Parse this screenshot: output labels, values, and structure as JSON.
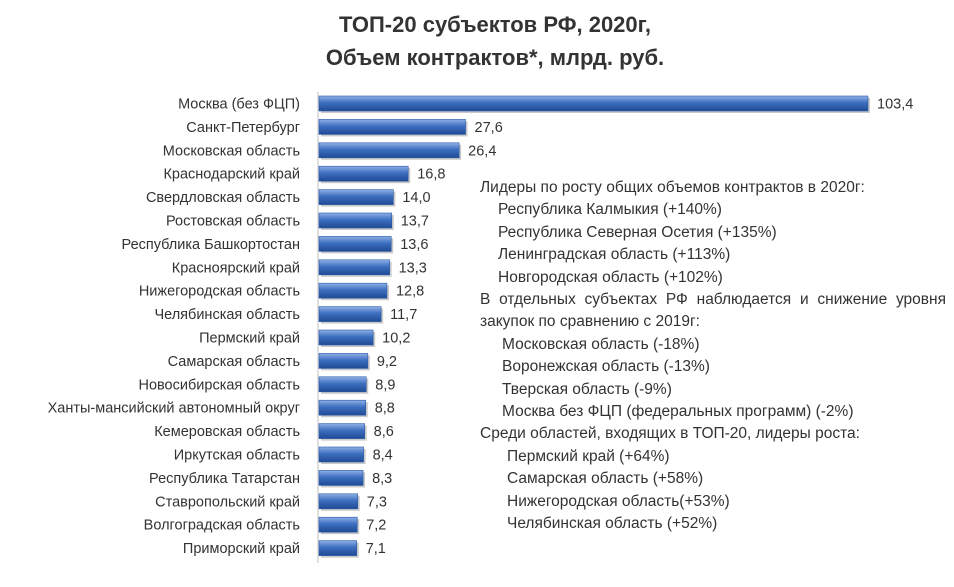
{
  "title_line1": "ТОП-20 субъектов РФ, 2020г,",
  "title_line2": "Объем контрактов*, млрд. руб.",
  "chart_data": {
    "type": "bar",
    "orientation": "horizontal",
    "categories": [
      "Москва (без ФЦП)",
      "Санкт-Петербург",
      "Московская область",
      "Краснодарский край",
      "Свердловская область",
      "Ростовская область",
      "Республика Башкортостан",
      "Красноярский край",
      "Нижегородская область",
      "Челябинская область",
      "Пермский край",
      "Самарская область",
      "Новосибирская область",
      "Ханты-мансийский автономный округ",
      "Кемеровская область",
      "Иркутская область",
      "Республика Татарстан",
      "Ставропольский край",
      "Волгоградская область",
      "Приморский край"
    ],
    "values": [
      103.4,
      27.6,
      26.4,
      16.8,
      14.0,
      13.7,
      13.6,
      13.3,
      12.8,
      11.7,
      10.2,
      9.2,
      8.9,
      8.8,
      8.6,
      8.4,
      8.3,
      7.3,
      7.2,
      7.1
    ],
    "value_labels": [
      "103,4",
      "27,6",
      "26,4",
      "16,8",
      "14,0",
      "13,7",
      "13,6",
      "13,3",
      "12,8",
      "11,7",
      "10,2",
      "9,2",
      "8,9",
      "8,8",
      "8,6",
      "8,4",
      "8,3",
      "7,3",
      "7,2",
      "7,1"
    ],
    "xlim": [
      0,
      103.4
    ],
    "grid": false,
    "bar_color": "#3d6fc0"
  },
  "notes": {
    "growth_leaders": {
      "heading": "Лидеры по росту общих объемов контрактов в 2020г:",
      "items": [
        "Республика Калмыкия (+140%)",
        "Республика Северная Осетия (+135%)",
        "Ленинградская область (+113%)",
        "Новгородская область (+102%)"
      ]
    },
    "decline": {
      "heading": "В отдельных субъектах РФ наблюдается и снижение уровня закупок по сравнению с 2019г:",
      "items": [
        "Московская область (-18%)",
        "Воронежская область (-13%)",
        "Тверская область (-9%)",
        "Москва без ФЦП (федеральных программ) (-2%)"
      ]
    },
    "top20_leaders": {
      "heading": "Среди областей, входящих в ТОП-20, лидеры роста:",
      "items": [
        "Пермский край (+64%)",
        "Самарская область (+58%)",
        "Нижегородская область(+53%)",
        "Челябинская область (+52%)"
      ]
    }
  }
}
